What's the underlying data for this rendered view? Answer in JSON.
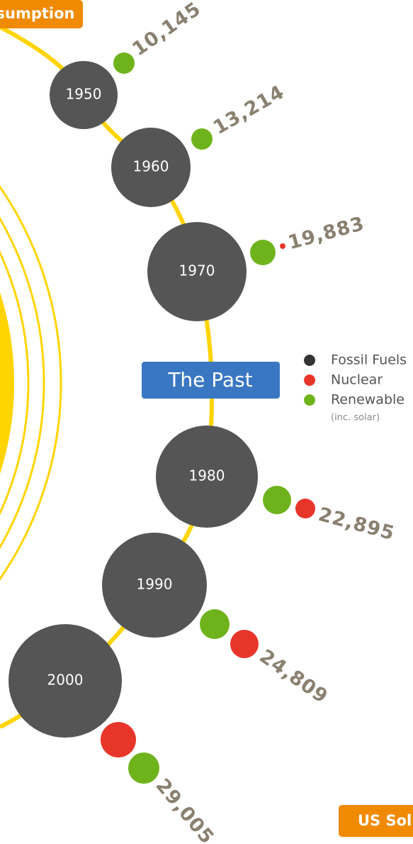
{
  "header": {
    "tag": "sumption"
  },
  "section": {
    "title": "The Past"
  },
  "legend": {
    "items": [
      {
        "label": "Fossil Fuels",
        "color": "#333333"
      },
      {
        "label": "Nuclear",
        "color": "#e8352a"
      },
      {
        "label": "Renewable",
        "color": "#6fb31c"
      }
    ],
    "note": "(inc. solar)"
  },
  "decades": [
    {
      "year": "1950",
      "total": "10,145"
    },
    {
      "year": "1960",
      "total": "13,214"
    },
    {
      "year": "1970",
      "total": "19,883"
    },
    {
      "year": "1980",
      "total": "22,895"
    },
    {
      "year": "1990",
      "total": "24,809"
    },
    {
      "year": "2000",
      "total": "29,005"
    }
  ],
  "footer": {
    "tag": "US Sol"
  }
}
